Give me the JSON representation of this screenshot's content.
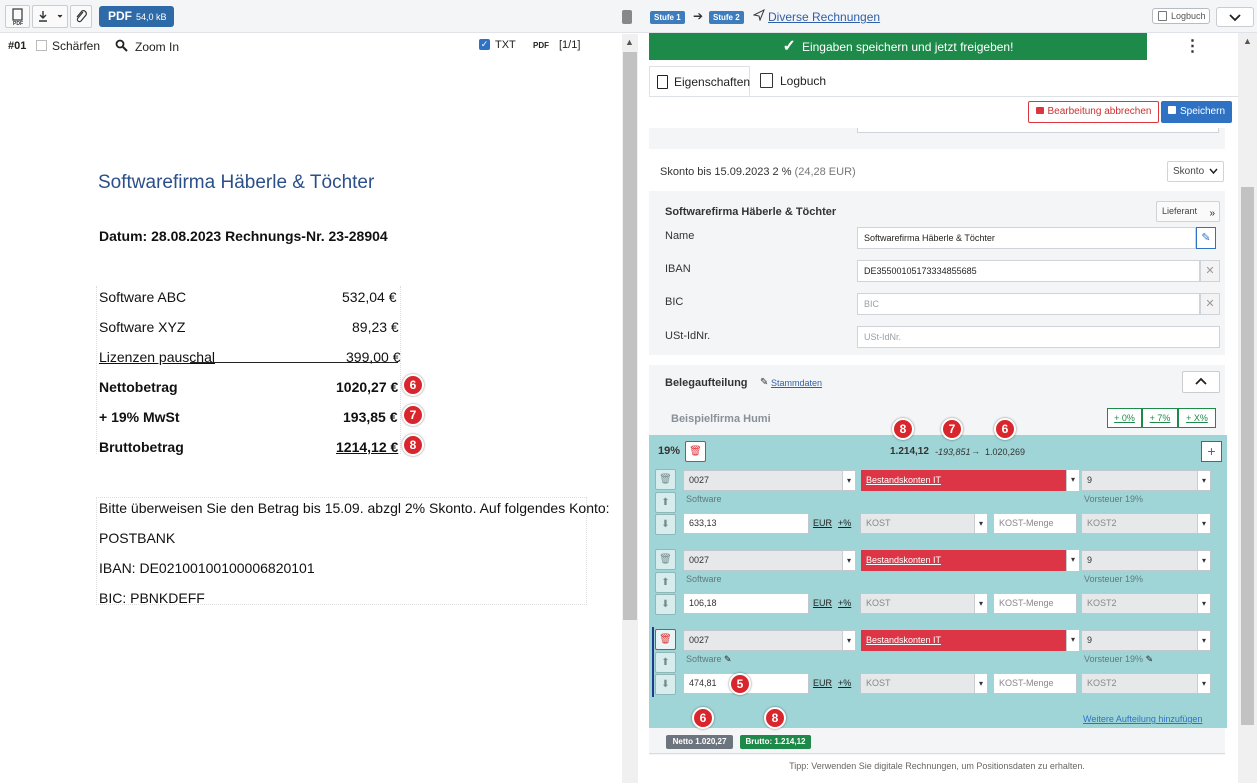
{
  "left": {
    "toolbar": {
      "pdf_label": "PDF",
      "pdf_size": "54,0 kB"
    },
    "sub": {
      "page_id": "#01",
      "sharpen": "Schärfen",
      "zoom": "Zoom In",
      "txt": "TXT",
      "pdf": "PDF",
      "pages": "[1/1]"
    },
    "doc": {
      "company": "Softwarefirma Häberle & Töchter",
      "date_line": "Datum: 28.08.2023 Rechnungs-Nr. 23-28904",
      "items": [
        {
          "name": "Software ABC",
          "amount": "532,04 €"
        },
        {
          "name": "Software XYZ",
          "amount": "89,23 €"
        },
        {
          "name": "Lizenzen pauschal",
          "amount": "399,00 €"
        }
      ],
      "netto_label": "Nettobetrag",
      "netto": "1020,27 €",
      "mwst_label": "+ 19% MwSt",
      "mwst": "193,85 €",
      "brutto_label": "Bruttobetrag",
      "brutto": "1214,12 €",
      "pay_text": "Bitte überweisen Sie den Betrag bis 15.09. abzgl 2% Skonto. Auf folgendes Konto:",
      "bank": "POSTBANK",
      "iban": "IBAN:  DE02100100100006820101",
      "bic": "BIC: PBNKDEFF"
    }
  },
  "right": {
    "breadcrumb": {
      "stufe1": "Stufe 1",
      "stufe2": "Stufe 2",
      "title": "Diverse Rechnungen",
      "logbuch_btn": "Logbuch"
    },
    "save_bar": "Eingaben speichern und jetzt freigeben!",
    "tabs": {
      "props": "Eigenschaften",
      "log": "Logbuch"
    },
    "cancel": "Bearbeitung abbrechen",
    "save": "Speichern",
    "skonto": {
      "text": "Skonto bis 15.09.2023  2 %",
      "amount": "(24,28 EUR)",
      "btn": "Skonto"
    },
    "supplier": {
      "title": "Softwarefirma Häberle & Töchter",
      "btn": "Lieferant",
      "name_label": "Name",
      "name_value": "Softwarefirma Häberle & Töchter",
      "iban_label": "IBAN",
      "iban_value": "DE35500105173334855685",
      "bic_label": "BIC",
      "bic_ph": "BIC",
      "ust_label": "USt-IdNr.",
      "ust_ph": "USt-IdNr."
    },
    "split": {
      "title": "Belegaufteilung",
      "stammdaten": "Stammdaten",
      "company": "Beispielfirma Humi",
      "btn0": "+ 0%",
      "btn7": "+ 7%",
      "btnx": "+ X%",
      "vat": "19%",
      "total": "1.214,12",
      "calc": "-193,851",
      "arrow": "→",
      "net": "1.020,269",
      "lines": [
        {
          "acct": "0027",
          "desc": "Software",
          "cat": "Bestandskonten IT",
          "tax": "9",
          "tax_label": "Vorsteuer 19%",
          "amount": "633,13"
        },
        {
          "acct": "0027",
          "desc": "Software",
          "cat": "Bestandskonten IT",
          "tax": "9",
          "tax_label": "Vorsteuer 19%",
          "amount": "106,18"
        },
        {
          "acct": "0027",
          "desc": "Software",
          "cat": "Bestandskonten IT",
          "tax": "9",
          "tax_label": "Vorsteuer 19%",
          "amount": "474,81"
        }
      ],
      "eur": "EUR",
      "pct": "+%",
      "kost": "KOST",
      "kost_menge": "KOST-Menge",
      "kost2": "KOST2",
      "add_more": "Weitere Aufteilung hinzufügen",
      "netto_pill": "Netto 1.020,27",
      "brutto_pill": "Brutto: 1.214,12",
      "tip": "Tipp: Verwenden Sie digitale Rechnungen, um Positionsdaten zu erhalten."
    },
    "markers": {
      "m5": "5",
      "m6": "6",
      "m7": "7",
      "m8": "8"
    }
  }
}
